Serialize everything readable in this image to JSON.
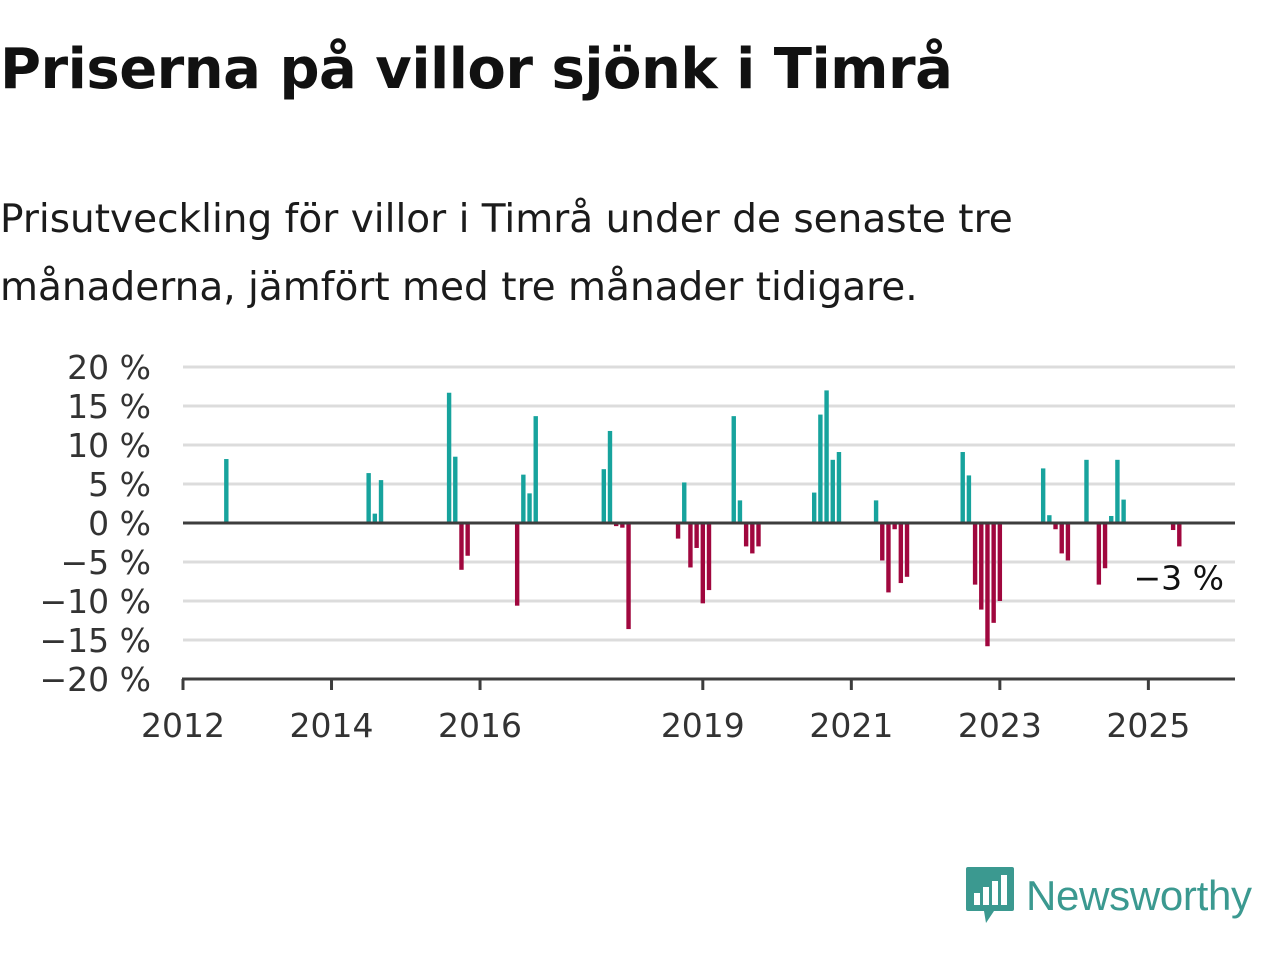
{
  "title": "Priserna på villor sjönk i Timrå",
  "subtitle": "Prisutveckling för villor i Timrå under de senaste tre månaderna, jämfört med tre månader tidigare.",
  "brand": {
    "name": "Newsworthy",
    "icon": "newsworthy-logo-icon"
  },
  "colors": {
    "positive": "#17a39d",
    "negative": "#a0073e",
    "grid": "#dcdcdc",
    "axis": "#3d3d3d",
    "brand": "#3b9990"
  },
  "chart_data": {
    "type": "bar",
    "xlabel": "",
    "ylabel": "",
    "ylim": [
      -20,
      20
    ],
    "xlim": [
      "2012-01",
      "2026-03"
    ],
    "y_ticks": [
      20,
      15,
      10,
      5,
      0,
      -5,
      -10,
      -15,
      -20
    ],
    "y_tick_labels": [
      "20 %",
      "15 %",
      "10 %",
      "5 %",
      "0 %",
      "−5 %",
      "−10 %",
      "−15 %",
      "−20 %"
    ],
    "x_ticks": [
      "2012",
      "2014",
      "2016",
      "2019",
      "2021",
      "2023",
      "2025"
    ],
    "grid": true,
    "last_value_label": "−3 %",
    "series": [
      {
        "x": [
          "2012-08",
          "2014-07",
          "2014-08",
          "2014-09",
          "2015-08",
          "2015-09",
          "2015-10",
          "2015-11",
          "2016-07",
          "2016-08",
          "2016-09",
          "2016-10",
          "2017-09",
          "2017-10",
          "2017-11",
          "2017-12",
          "2018-01",
          "2018-09",
          "2018-10",
          "2018-11",
          "2018-12",
          "2019-01",
          "2019-02",
          "2019-06",
          "2019-07",
          "2019-08",
          "2019-09",
          "2019-10",
          "2020-07",
          "2020-08",
          "2020-09",
          "2020-10",
          "2020-11",
          "2021-05",
          "2021-06",
          "2021-07",
          "2021-08",
          "2021-09",
          "2021-10",
          "2022-07",
          "2022-08",
          "2022-09",
          "2022-10",
          "2022-11",
          "2022-12",
          "2023-01",
          "2023-08",
          "2023-09",
          "2023-10",
          "2023-11",
          "2023-12",
          "2024-03",
          "2024-05",
          "2024-06",
          "2024-07",
          "2024-08",
          "2024-09",
          "2025-05",
          "2025-06"
        ],
        "values": [
          8.2,
          6.4,
          1.2,
          5.5,
          16.7,
          8.5,
          -6,
          -4.2,
          -10.6,
          6.2,
          3.8,
          13.7,
          6.9,
          11.8,
          -0.4,
          -0.6,
          -13.6,
          -2,
          5.2,
          -5.7,
          -3.2,
          -10.3,
          -8.6,
          13.7,
          2.9,
          -3,
          -3.9,
          -3,
          3.9,
          13.9,
          17,
          8.1,
          9.1,
          2.9,
          -4.8,
          -8.9,
          -0.8,
          -7.7,
          -6.9,
          9.1,
          6.1,
          -7.9,
          -11.1,
          -15.8,
          -12.8,
          -10,
          7,
          1,
          -0.8,
          -3.9,
          -4.8,
          8.1,
          -7.9,
          -5.8,
          0.9,
          8.1,
          3,
          -0.9,
          -3
        ]
      }
    ]
  }
}
